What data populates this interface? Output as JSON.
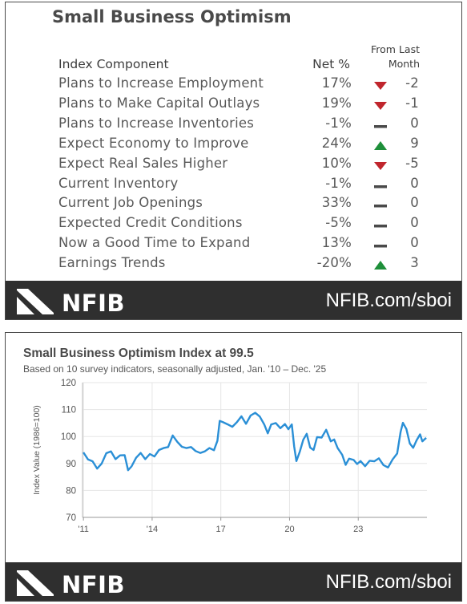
{
  "table": {
    "title": "Small Business Optimism",
    "col_component": "Index Component",
    "col_net": "Net %",
    "col_change_line1": "From Last",
    "col_change_line2": "Month",
    "rows": [
      {
        "component": "Plans to Increase Employment",
        "net": "17%",
        "direction": "down",
        "change": "-2"
      },
      {
        "component": "Plans to Make Capital Outlays",
        "net": "19%",
        "direction": "down",
        "change": "-1"
      },
      {
        "component": "Plans to Increase Inventories",
        "net": "-1%",
        "direction": "flat",
        "change": "0"
      },
      {
        "component": "Expect Economy to Improve",
        "net": "24%",
        "direction": "up",
        "change": "9"
      },
      {
        "component": "Expect Real Sales Higher",
        "net": "10%",
        "direction": "down",
        "change": "-5"
      },
      {
        "component": "Current Inventory",
        "net": "-1%",
        "direction": "flat",
        "change": "0"
      },
      {
        "component": "Current Job Openings",
        "net": "33%",
        "direction": "flat",
        "change": "0"
      },
      {
        "component": "Expected Credit Conditions",
        "net": "-5%",
        "direction": "flat",
        "change": "0"
      },
      {
        "component": "Now a Good Time to Expand",
        "net": "13%",
        "direction": "flat",
        "change": "0"
      },
      {
        "component": "Earnings Trends",
        "net": "-20%",
        "direction": "up",
        "change": "3"
      }
    ]
  },
  "footer": {
    "logo": "NFIB",
    "url": "NFIB.com/sboi"
  },
  "colors": {
    "up": "#1e8f3a",
    "down": "#c0262d",
    "flat": "#4a4a4a",
    "line": "#2a8fd6",
    "footer": "#2f2f2f"
  },
  "chart_data": {
    "type": "line",
    "title": "Small Business Optimism Index at 99.5",
    "subtitle": "Based on 10 survey indicators, seasonally adjusted,  Jan. '10 – Dec. '25",
    "ylabel": "Index Value (1986=100)",
    "xlabel": "",
    "ylim": [
      70,
      120
    ],
    "yticks": [
      "120",
      "110",
      "100",
      "90",
      "80",
      "70"
    ],
    "xlim": [
      2010.96,
      2026.0
    ],
    "xticks": [
      {
        "label": "'11",
        "value": 2011
      },
      {
        "label": "'14",
        "value": 2014
      },
      {
        "label": "17",
        "value": 2017
      },
      {
        "label": "20",
        "value": 2020
      },
      {
        "label": "23",
        "value": 2023
      }
    ],
    "grid": true,
    "series": [
      {
        "name": "",
        "points": [
          [
            2011.0,
            94.1
          ],
          [
            2011.2,
            91.5
          ],
          [
            2011.4,
            90.8
          ],
          [
            2011.6,
            88.1
          ],
          [
            2011.8,
            90.0
          ],
          [
            2012.0,
            93.8
          ],
          [
            2012.2,
            94.5
          ],
          [
            2012.4,
            91.6
          ],
          [
            2012.6,
            93.0
          ],
          [
            2012.8,
            93.1
          ],
          [
            2012.95,
            87.5
          ],
          [
            2013.1,
            88.9
          ],
          [
            2013.3,
            92.1
          ],
          [
            2013.5,
            93.9
          ],
          [
            2013.7,
            91.6
          ],
          [
            2013.9,
            93.5
          ],
          [
            2014.1,
            92.6
          ],
          [
            2014.3,
            95.0
          ],
          [
            2014.5,
            95.7
          ],
          [
            2014.7,
            96.1
          ],
          [
            2014.9,
            100.4
          ],
          [
            2015.1,
            98.0
          ],
          [
            2015.3,
            96.2
          ],
          [
            2015.5,
            95.7
          ],
          [
            2015.7,
            96.1
          ],
          [
            2015.9,
            94.6
          ],
          [
            2016.1,
            93.9
          ],
          [
            2016.3,
            94.5
          ],
          [
            2016.5,
            95.7
          ],
          [
            2016.7,
            94.9
          ],
          [
            2016.85,
            98.4
          ],
          [
            2016.95,
            105.8
          ],
          [
            2017.1,
            105.3
          ],
          [
            2017.3,
            104.5
          ],
          [
            2017.5,
            103.6
          ],
          [
            2017.7,
            105.3
          ],
          [
            2017.9,
            107.5
          ],
          [
            2018.1,
            104.7
          ],
          [
            2018.3,
            107.8
          ],
          [
            2018.5,
            108.8
          ],
          [
            2018.7,
            107.4
          ],
          [
            2018.9,
            104.4
          ],
          [
            2019.05,
            101.2
          ],
          [
            2019.2,
            104.5
          ],
          [
            2019.4,
            105.0
          ],
          [
            2019.6,
            103.1
          ],
          [
            2019.8,
            104.6
          ],
          [
            2019.95,
            102.7
          ],
          [
            2020.1,
            104.5
          ],
          [
            2020.2,
            96.4
          ],
          [
            2020.3,
            90.9
          ],
          [
            2020.45,
            94.4
          ],
          [
            2020.6,
            98.8
          ],
          [
            2020.75,
            101.0
          ],
          [
            2020.9,
            95.9
          ],
          [
            2021.05,
            95.0
          ],
          [
            2021.2,
            99.8
          ],
          [
            2021.4,
            99.6
          ],
          [
            2021.6,
            102.5
          ],
          [
            2021.8,
            98.2
          ],
          [
            2021.95,
            98.9
          ],
          [
            2022.1,
            95.7
          ],
          [
            2022.3,
            93.2
          ],
          [
            2022.45,
            89.5
          ],
          [
            2022.6,
            91.8
          ],
          [
            2022.8,
            91.3
          ],
          [
            2022.95,
            89.8
          ],
          [
            2023.1,
            90.9
          ],
          [
            2023.3,
            89.0
          ],
          [
            2023.5,
            91.0
          ],
          [
            2023.7,
            90.8
          ],
          [
            2023.9,
            91.9
          ],
          [
            2024.1,
            89.4
          ],
          [
            2024.3,
            88.5
          ],
          [
            2024.5,
            91.5
          ],
          [
            2024.7,
            93.7
          ],
          [
            2024.85,
            101.7
          ],
          [
            2024.95,
            105.1
          ],
          [
            2025.1,
            102.8
          ],
          [
            2025.25,
            97.4
          ],
          [
            2025.4,
            95.8
          ],
          [
            2025.55,
            98.6
          ],
          [
            2025.7,
            100.8
          ],
          [
            2025.8,
            98.2
          ],
          [
            2025.9,
            99.0
          ],
          [
            2025.97,
            99.5
          ]
        ]
      }
    ]
  }
}
